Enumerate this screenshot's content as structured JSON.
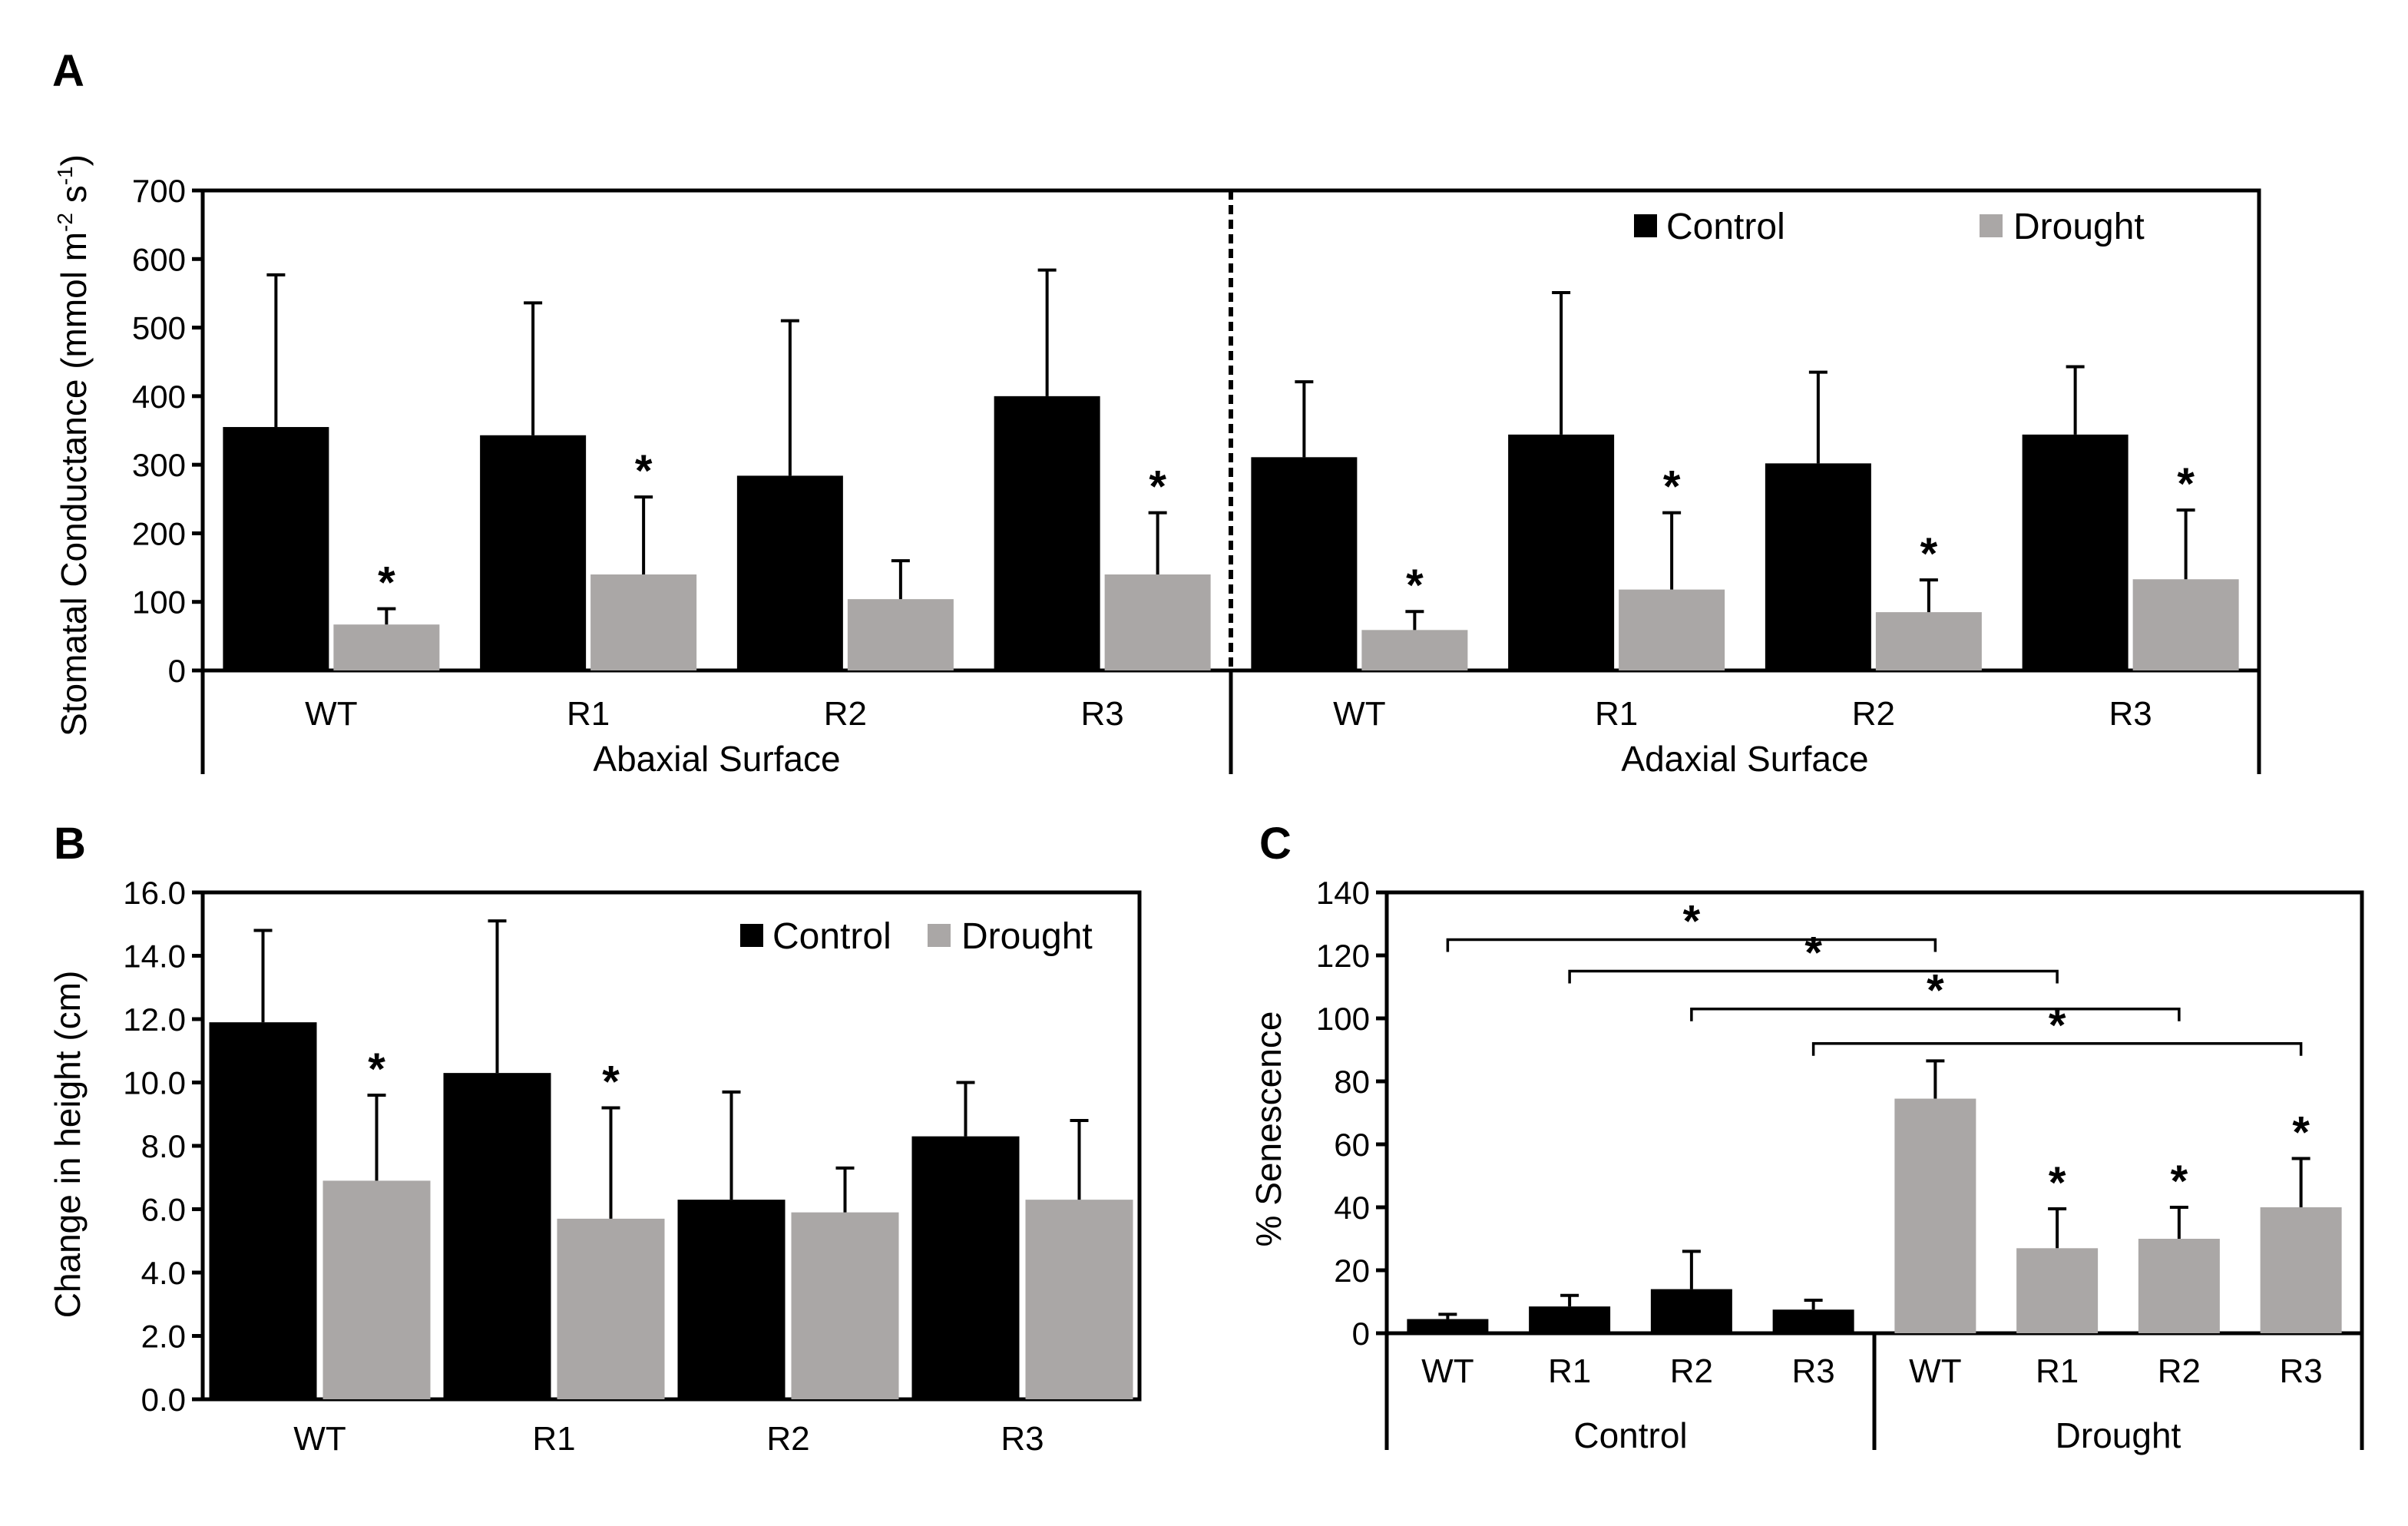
{
  "colors": {
    "control": "#000000",
    "drought": "#aaa7a6"
  },
  "chart_data": [
    {
      "panel": "A",
      "type": "bar",
      "ylabel": "Stomatal Conductance (mmol m-2 s-1)",
      "ylabel_main": "Stomatal Conductance (mmol m",
      "ylabel_sup1": "-2",
      "ylabel_mid": " s",
      "ylabel_sup2": "-1",
      "ylabel_end": ")",
      "ylim": [
        0,
        700
      ],
      "yticks": [
        "0",
        "100",
        "200",
        "300",
        "400",
        "500",
        "600",
        "700"
      ],
      "categories": [
        "WT",
        "R1",
        "R2",
        "R3",
        "WT",
        "R1",
        "R2",
        "R3"
      ],
      "groups": [
        "Abaxial Surface",
        "Adaxial Surface"
      ],
      "legend": [
        "Control",
        "Drought"
      ],
      "series": [
        {
          "name": "Control",
          "values": [
            355,
            343,
            284,
            400,
            311,
            344,
            302,
            344
          ],
          "errors": [
            222,
            193,
            226,
            184,
            110,
            207,
            133,
            99
          ]
        },
        {
          "name": "Drought",
          "values": [
            67,
            140,
            104,
            140,
            59,
            118,
            85,
            133
          ],
          "errors": [
            23,
            113,
            56,
            90,
            27,
            112,
            47,
            101
          ]
        }
      ],
      "significance": [
        "*",
        "*",
        "",
        "*",
        "*",
        "*",
        "*",
        "*"
      ]
    },
    {
      "panel": "B",
      "type": "bar",
      "ylabel": "Change in height (cm)",
      "ylim": [
        0,
        16
      ],
      "yticks": [
        "0.0",
        "2.0",
        "4.0",
        "6.0",
        "8.0",
        "10.0",
        "12.0",
        "14.0",
        "16.0"
      ],
      "categories": [
        "WT",
        "R1",
        "R2",
        "R3"
      ],
      "legend": [
        "Control",
        "Drought"
      ],
      "series": [
        {
          "name": "Control",
          "values": [
            11.9,
            10.3,
            6.3,
            8.3
          ],
          "errors": [
            2.9,
            4.8,
            3.4,
            1.7
          ]
        },
        {
          "name": "Drought",
          "values": [
            6.9,
            5.7,
            5.9,
            6.3
          ],
          "errors": [
            2.7,
            3.5,
            1.4,
            2.5
          ]
        }
      ],
      "significance": [
        "*",
        "*",
        "",
        ""
      ]
    },
    {
      "panel": "C",
      "type": "bar",
      "ylabel": "% Senescence",
      "ylim": [
        0,
        140
      ],
      "yticks": [
        "0",
        "20",
        "40",
        "60",
        "80",
        "100",
        "120",
        "140"
      ],
      "categories": [
        "WT",
        "R1",
        "R2",
        "R3",
        "WT",
        "R1",
        "R2",
        "R3"
      ],
      "groups": [
        "Control",
        "Drought"
      ],
      "values": [
        4.5,
        8.5,
        14,
        7.5,
        74.5,
        27,
        30,
        40
      ],
      "errors": [
        1.5,
        3.5,
        12,
        3,
        12,
        12.5,
        10,
        15.5
      ],
      "bar_series": [
        "Control",
        "Control",
        "Control",
        "Control",
        "Drought",
        "Drought",
        "Drought",
        "Drought"
      ],
      "significance": [
        "",
        "",
        "",
        "",
        "",
        "*",
        "*",
        "*"
      ],
      "brackets": [
        {
          "from": 0,
          "to": 4,
          "level": 125,
          "label": "*"
        },
        {
          "from": 1,
          "to": 5,
          "level": 115,
          "label": "*"
        },
        {
          "from": 2,
          "to": 6,
          "level": 103,
          "label": "*"
        },
        {
          "from": 3,
          "to": 7,
          "level": 92,
          "label": "*"
        }
      ]
    }
  ]
}
